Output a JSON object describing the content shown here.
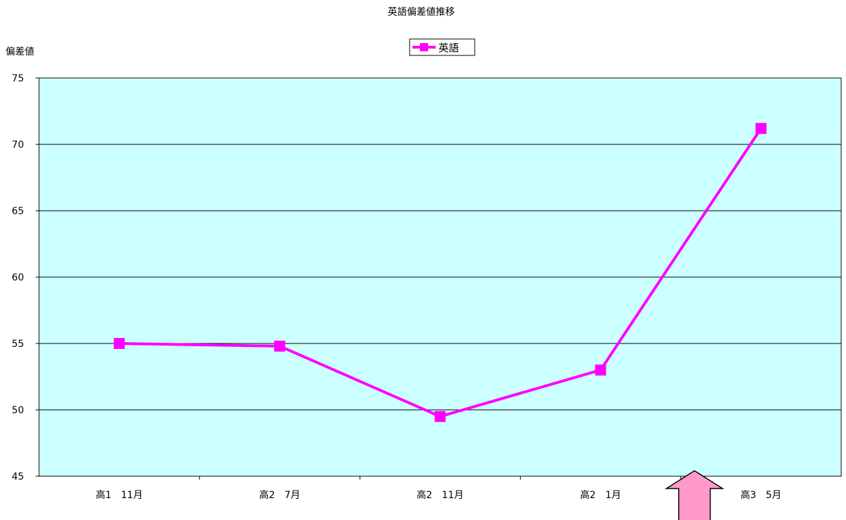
{
  "chart_data": {
    "type": "line",
    "title": "英語偏差値推移",
    "ylabel": "偏差値",
    "xlabel": "",
    "categories": [
      "高1　11月",
      "高2　7月",
      "高2　11月",
      "高2　1月",
      "高3　5月"
    ],
    "series": [
      {
        "name": "英語",
        "values": [
          55.0,
          54.8,
          49.5,
          53.0,
          71.2
        ],
        "color": "#ff00ff"
      }
    ],
    "ylim": [
      45,
      75
    ],
    "yticks": [
      45,
      50,
      55,
      60,
      65,
      70,
      75
    ],
    "grid": true,
    "legend_position": "top-center",
    "plot_background": "#ccffff",
    "annotation": {
      "shape": "up-arrow",
      "color": "#ff99cc"
    }
  }
}
